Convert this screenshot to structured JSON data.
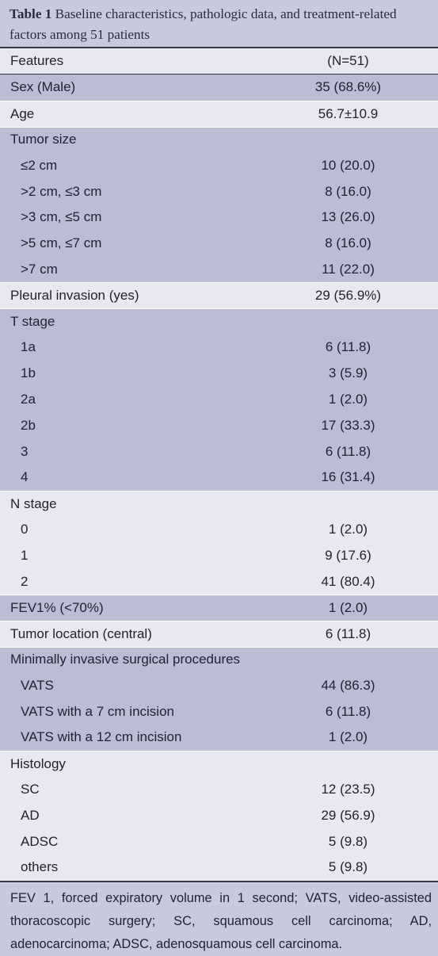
{
  "caption": {
    "label": "Table 1",
    "text": "Baseline characteristics, pathologic data, and treatment-related factors among 51 patients"
  },
  "header": {
    "col1": "Features",
    "col2": "(N=51)"
  },
  "rows": [
    {
      "label": "Sex (Male)",
      "value": "35 (68.6%)"
    },
    {
      "label": "Age",
      "value": "56.7±10.9"
    },
    {
      "label": "Tumor size",
      "value": ""
    },
    {
      "label": "≤2 cm",
      "value": "10 (20.0)"
    },
    {
      "label": ">2 cm, ≤3 cm",
      "value": "8 (16.0)"
    },
    {
      "label": ">3 cm, ≤5 cm",
      "value": "13 (26.0)"
    },
    {
      "label": ">5 cm, ≤7 cm",
      "value": "8 (16.0)"
    },
    {
      "label": ">7 cm",
      "value": "11 (22.0)"
    },
    {
      "label": "Pleural invasion (yes)",
      "value": "29 (56.9%)"
    },
    {
      "label": "T stage",
      "value": ""
    },
    {
      "label": "1a",
      "value": "6 (11.8)"
    },
    {
      "label": "1b",
      "value": "3 (5.9)"
    },
    {
      "label": "2a",
      "value": "1 (2.0)"
    },
    {
      "label": "2b",
      "value": "17 (33.3)"
    },
    {
      "label": "3",
      "value": "6 (11.8)"
    },
    {
      "label": "4",
      "value": "16 (31.4)"
    },
    {
      "label": "N stage",
      "value": ""
    },
    {
      "label": "0",
      "value": "1 (2.0)"
    },
    {
      "label": "1",
      "value": "9 (17.6)"
    },
    {
      "label": "2",
      "value": "41 (80.4)"
    },
    {
      "label": "FEV1% (<70%)",
      "value": "1 (2.0)"
    },
    {
      "label": "Tumor location (central)",
      "value": "6 (11.8)"
    },
    {
      "label": "Minimally invasive surgical procedures",
      "value": ""
    },
    {
      "label": "VATS",
      "value": "44 (86.3)"
    },
    {
      "label": "VATS with a 7 cm incision",
      "value": "6 (11.8)"
    },
    {
      "label": "VATS with a 12 cm incision",
      "value": "1 (2.0)"
    },
    {
      "label": "Histology",
      "value": ""
    },
    {
      "label": "SC",
      "value": "12 (23.5)"
    },
    {
      "label": "AD",
      "value": "29 (56.9)"
    },
    {
      "label": "ADSC",
      "value": "5 (9.8)"
    },
    {
      "label": "others",
      "value": "5 (9.8)"
    }
  ],
  "footnote": "FEV 1, forced expiratory volume in 1 second; VATS, video-assisted thoracoscopic surgery; SC, squamous cell carcinoma; AD, adenocarcinoma; ADSC, adenosquamous cell carcinoma."
}
